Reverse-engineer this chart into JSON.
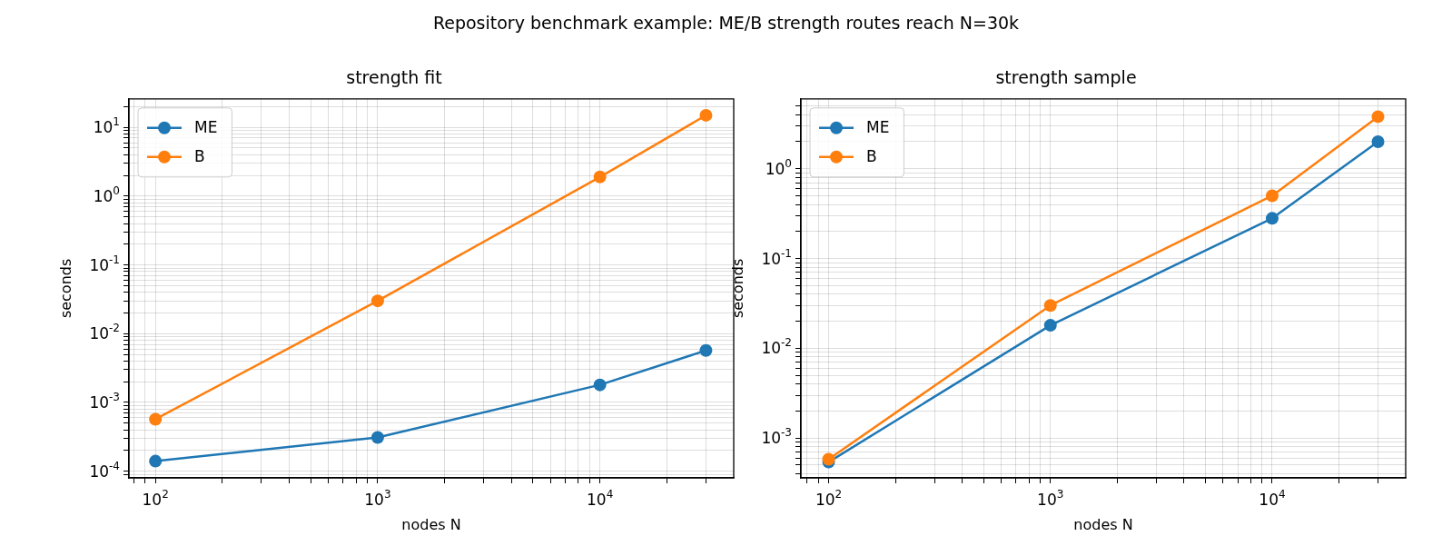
{
  "chart_data": [
    {
      "type": "line",
      "title": "strength fit",
      "xlabel": "nodes N",
      "ylabel": "seconds",
      "annotations": [
        "Repository benchmark example: ME/B strength routes reach N=30k"
      ],
      "x": [
        100,
        1000,
        10000,
        30000
      ],
      "series": [
        {
          "name": "ME",
          "color": "#1f77b4",
          "values": [
            0.00014,
            0.00031,
            0.0018,
            0.0057
          ]
        },
        {
          "name": "B",
          "color": "#ff7f0e",
          "values": [
            0.00057,
            0.03,
            1.9,
            15
          ]
        }
      ],
      "log": "xy",
      "marker": "circle",
      "line_style": "solid",
      "grid": true,
      "legend": "top left",
      "xlim": [
        76,
        40000
      ],
      "ylim": [
        8e-05,
        26
      ],
      "xticks": [
        {
          "value": 80,
          "label": null
        },
        {
          "value": 90,
          "label": null
        },
        {
          "value": 100,
          "label": "10$^{2}$"
        },
        {
          "value": 200,
          "label": null
        },
        {
          "value": 300,
          "label": null
        },
        {
          "value": 400,
          "label": null
        },
        {
          "value": 500,
          "label": null
        },
        {
          "value": 600,
          "label": null
        },
        {
          "value": 700,
          "label": null
        },
        {
          "value": 800,
          "label": null
        },
        {
          "value": 900,
          "label": null
        },
        {
          "value": 1000,
          "label": "10$^{3}$"
        },
        {
          "value": 2000,
          "label": null
        },
        {
          "value": 3000,
          "label": null
        },
        {
          "value": 4000,
          "label": null
        },
        {
          "value": 5000,
          "label": null
        },
        {
          "value": 6000,
          "label": null
        },
        {
          "value": 7000,
          "label": null
        },
        {
          "value": 8000,
          "label": null
        },
        {
          "value": 9000,
          "label": null
        },
        {
          "value": 10000,
          "label": "10$^{4}$"
        },
        {
          "value": 20000,
          "label": null
        },
        {
          "value": 30000,
          "label": null
        }
      ],
      "yticks": [
        {
          "value": 9e-05,
          "label": null
        },
        {
          "value": 0.0001,
          "label": "10$^{-4}$"
        },
        {
          "value": 0.0002,
          "label": null
        },
        {
          "value": 0.0003,
          "label": null
        },
        {
          "value": 0.0004,
          "label": null
        },
        {
          "value": 0.0005,
          "label": null
        },
        {
          "value": 0.0006,
          "label": null
        },
        {
          "value": 0.0007,
          "label": null
        },
        {
          "value": 0.0008,
          "label": null
        },
        {
          "value": 0.0009,
          "label": null
        },
        {
          "value": 0.001,
          "label": "10$^{-3}$"
        },
        {
          "value": 0.002,
          "label": null
        },
        {
          "value": 0.003,
          "label": null
        },
        {
          "value": 0.004,
          "label": null
        },
        {
          "value": 0.005,
          "label": null
        },
        {
          "value": 0.006,
          "label": null
        },
        {
          "value": 0.007,
          "label": null
        },
        {
          "value": 0.008,
          "label": null
        },
        {
          "value": 0.009,
          "label": null
        },
        {
          "value": 0.01,
          "label": "10$^{-2}$"
        },
        {
          "value": 0.02,
          "label": null
        },
        {
          "value": 0.03,
          "label": null
        },
        {
          "value": 0.04,
          "label": null
        },
        {
          "value": 0.05,
          "label": null
        },
        {
          "value": 0.06,
          "label": null
        },
        {
          "value": 0.07,
          "label": null
        },
        {
          "value": 0.08,
          "label": null
        },
        {
          "value": 0.09,
          "label": null
        },
        {
          "value": 0.1,
          "label": "10$^{-1}$"
        },
        {
          "value": 0.2,
          "label": null
        },
        {
          "value": 0.3,
          "label": null
        },
        {
          "value": 0.4,
          "label": null
        },
        {
          "value": 0.5,
          "label": null
        },
        {
          "value": 0.6,
          "label": null
        },
        {
          "value": 0.7,
          "label": null
        },
        {
          "value": 0.8,
          "label": null
        },
        {
          "value": 0.9,
          "label": null
        },
        {
          "value": 1,
          "label": "10$^{0}$"
        },
        {
          "value": 2,
          "label": null
        },
        {
          "value": 3,
          "label": null
        },
        {
          "value": 4,
          "label": null
        },
        {
          "value": 5,
          "label": null
        },
        {
          "value": 6,
          "label": null
        },
        {
          "value": 7,
          "label": null
        },
        {
          "value": 8,
          "label": null
        },
        {
          "value": 9,
          "label": null
        },
        {
          "value": 10,
          "label": "10$^{1}$"
        },
        {
          "value": 20,
          "label": null
        }
      ]
    },
    {
      "type": "line",
      "title": "strength sample",
      "xlabel": "nodes N",
      "ylabel": "seconds",
      "x": [
        100,
        1000,
        10000,
        30000
      ],
      "series": [
        {
          "name": "ME",
          "color": "#1f77b4",
          "values": [
            0.00054,
            0.018,
            0.28,
            2.0
          ]
        },
        {
          "name": "B",
          "color": "#ff7f0e",
          "values": [
            0.00058,
            0.03,
            0.5,
            3.8
          ]
        }
      ],
      "log": "xy",
      "marker": "circle",
      "line_style": "solid",
      "grid": true,
      "legend": "top left",
      "xlim": [
        75,
        40000
      ],
      "ylim": [
        0.00036,
        6
      ],
      "xticks": [
        {
          "value": 80,
          "label": null
        },
        {
          "value": 90,
          "label": null
        },
        {
          "value": 100,
          "label": "10$^{2}$"
        },
        {
          "value": 200,
          "label": null
        },
        {
          "value": 300,
          "label": null
        },
        {
          "value": 400,
          "label": null
        },
        {
          "value": 500,
          "label": null
        },
        {
          "value": 600,
          "label": null
        },
        {
          "value": 700,
          "label": null
        },
        {
          "value": 800,
          "label": null
        },
        {
          "value": 900,
          "label": null
        },
        {
          "value": 1000,
          "label": "10$^{3}$"
        },
        {
          "value": 2000,
          "label": null
        },
        {
          "value": 3000,
          "label": null
        },
        {
          "value": 4000,
          "label": null
        },
        {
          "value": 5000,
          "label": null
        },
        {
          "value": 6000,
          "label": null
        },
        {
          "value": 7000,
          "label": null
        },
        {
          "value": 8000,
          "label": null
        },
        {
          "value": 9000,
          "label": null
        },
        {
          "value": 10000,
          "label": "10$^{4}$"
        },
        {
          "value": 20000,
          "label": null
        },
        {
          "value": 30000,
          "label": null
        }
      ],
      "yticks": [
        {
          "value": 0.0004,
          "label": null
        },
        {
          "value": 0.0005,
          "label": null
        },
        {
          "value": 0.0006,
          "label": null
        },
        {
          "value": 0.0007,
          "label": null
        },
        {
          "value": 0.0008,
          "label": null
        },
        {
          "value": 0.0009,
          "label": null
        },
        {
          "value": 0.001,
          "label": "10$^{-3}$"
        },
        {
          "value": 0.002,
          "label": null
        },
        {
          "value": 0.003,
          "label": null
        },
        {
          "value": 0.004,
          "label": null
        },
        {
          "value": 0.005,
          "label": null
        },
        {
          "value": 0.006,
          "label": null
        },
        {
          "value": 0.007,
          "label": null
        },
        {
          "value": 0.008,
          "label": null
        },
        {
          "value": 0.009,
          "label": null
        },
        {
          "value": 0.01,
          "label": "10$^{-2}$"
        },
        {
          "value": 0.02,
          "label": null
        },
        {
          "value": 0.03,
          "label": null
        },
        {
          "value": 0.04,
          "label": null
        },
        {
          "value": 0.05,
          "label": null
        },
        {
          "value": 0.06,
          "label": null
        },
        {
          "value": 0.07,
          "label": null
        },
        {
          "value": 0.08,
          "label": null
        },
        {
          "value": 0.09,
          "label": null
        },
        {
          "value": 0.1,
          "label": "10$^{-1}$"
        },
        {
          "value": 0.2,
          "label": null
        },
        {
          "value": 0.3,
          "label": null
        },
        {
          "value": 0.4,
          "label": null
        },
        {
          "value": 0.5,
          "label": null
        },
        {
          "value": 0.6,
          "label": null
        },
        {
          "value": 0.7,
          "label": null
        },
        {
          "value": 0.8,
          "label": null
        },
        {
          "value": 0.9,
          "label": null
        },
        {
          "value": 1,
          "label": "10$^{0}$"
        },
        {
          "value": 2,
          "label": null
        },
        {
          "value": 3,
          "label": null
        },
        {
          "value": 4,
          "label": null
        },
        {
          "value": 5,
          "label": null
        }
      ]
    }
  ]
}
